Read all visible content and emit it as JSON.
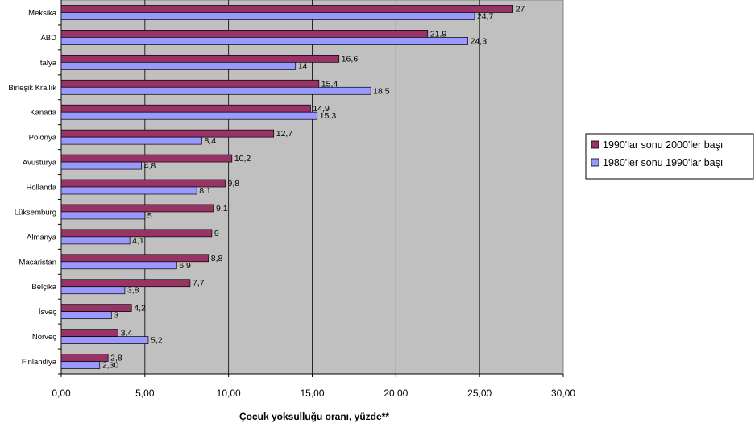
{
  "chart_data": {
    "type": "bar",
    "orientation": "horizontal",
    "categories": [
      "Meksika",
      "ABD",
      "İtalya",
      "Birleşik Krallık",
      "Kanada",
      "Polonya",
      "Avusturya",
      "Hollanda",
      "Lüksemburg",
      "Almanya",
      "Macaristan",
      "Belçika",
      "İsveç",
      "Norveç",
      "Finlandiya"
    ],
    "series": [
      {
        "name": "1990'lar sonu 2000'ler başı",
        "color": "#993366",
        "values": [
          27,
          21.9,
          16.6,
          15.4,
          14.9,
          12.7,
          10.2,
          9.8,
          9.1,
          9,
          8.8,
          7.7,
          4.2,
          3.4,
          2.8
        ],
        "labels": [
          "27",
          "21,9",
          "16,6",
          "15,4",
          "14,9",
          "12,7",
          "10,2",
          "9,8",
          "9,1",
          "9",
          "8,8",
          "7,7",
          "4,2",
          "3,4",
          "2,8"
        ]
      },
      {
        "name": "1980'ler sonu 1990'lar başı",
        "color": "#9999ff",
        "values": [
          24.7,
          24.3,
          14,
          18.5,
          15.3,
          8.4,
          4.8,
          8.1,
          5,
          4.1,
          6.9,
          3.8,
          3,
          5.2,
          2.3
        ],
        "labels": [
          "24,7",
          "24,3",
          "14",
          "18,5",
          "15,3",
          "8,4",
          "4,8",
          "8,1",
          "5",
          "4,1",
          "6,9",
          "3,8",
          "3",
          "5,2",
          "2,30"
        ]
      }
    ],
    "xlabel": "Çocuk yoksulluğu oranı, yüzde**",
    "xlim": [
      0,
      30
    ],
    "xticks": [
      0,
      5,
      10,
      15,
      20,
      25,
      30
    ],
    "xtick_labels": [
      "0,00",
      "5,00",
      "10,00",
      "15,00",
      "20,00",
      "25,00",
      "30,00"
    ],
    "grid": "vertical",
    "plot_background": "#c0c0c0",
    "legend_position": "right"
  }
}
